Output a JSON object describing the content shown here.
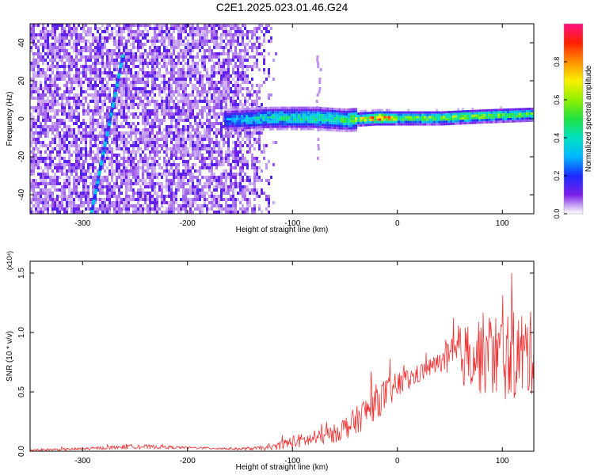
{
  "title": "C2E1.2025.023.01.46.G24",
  "chart_data": [
    {
      "type": "heatmap",
      "xlabel": "Height of straight line (km)",
      "ylabel": "Frequency (Hz)",
      "xlim": [
        -350,
        130
      ],
      "ylim": [
        -50,
        50
      ],
      "x_ticks": [
        -300,
        -200,
        -100,
        0,
        100
      ],
      "y_ticks": [
        -40,
        -20,
        0,
        20,
        40
      ],
      "x_tick_labels": [
        "-300",
        "-200",
        "-100",
        "0",
        "100"
      ],
      "y_tick_labels": [
        "-40",
        "-20",
        "0",
        "20",
        "40"
      ],
      "colorbar": {
        "label": "Normalized spectral amplitude",
        "range": [
          0,
          1
        ],
        "ticks": [
          "0.0",
          "0.2",
          "0.4",
          "0.6",
          "0.8"
        ],
        "ticks_values": [
          0.0,
          0.2,
          0.4,
          0.6,
          0.8
        ]
      },
      "noise_region_x": [
        -350,
        -115
      ],
      "streak": {
        "x_start": -292,
        "y_start": -50,
        "x_end": -262,
        "y_end": 33
      },
      "signal_track": [
        {
          "x": -160,
          "y": 0
        },
        {
          "x": -120,
          "y": 1
        },
        {
          "x": -80,
          "y": 1
        },
        {
          "x": -50,
          "y": 0
        },
        {
          "x": -20,
          "y": 1
        },
        {
          "x": 0,
          "y": 1
        },
        {
          "x": 40,
          "y": 1
        },
        {
          "x": 80,
          "y": 2
        },
        {
          "x": 130,
          "y": 3
        }
      ],
      "signal_amplitude": [
        {
          "x": -160,
          "a": 0.3
        },
        {
          "x": -120,
          "a": 0.42
        },
        {
          "x": -80,
          "a": 0.45
        },
        {
          "x": -50,
          "a": 0.48
        },
        {
          "x": -30,
          "a": 0.7
        },
        {
          "x": -15,
          "a": 0.95
        },
        {
          "x": 0,
          "a": 0.55
        },
        {
          "x": 50,
          "a": 0.6
        },
        {
          "x": 100,
          "a": 0.55
        },
        {
          "x": 130,
          "a": 0.5
        }
      ]
    },
    {
      "type": "line",
      "xlabel": "Height of straight line (km)",
      "ylabel": "SNR (10 * v/v)",
      "y_multiplier": "(x10⁴)",
      "xlim": [
        -350,
        130
      ],
      "ylim": [
        0,
        1.6
      ],
      "x_ticks": [
        -300,
        -200,
        -100,
        0,
        100
      ],
      "y_ticks": [
        0,
        0.5,
        1.0,
        1.5
      ],
      "x_tick_labels": [
        "-300",
        "-200",
        "-100",
        "0",
        "100"
      ],
      "y_tick_labels": [
        "0.0",
        "0.5",
        "1.0",
        "1.5"
      ],
      "series": [
        {
          "color": "#ee3333",
          "envelope": [
            {
              "x": -350,
              "mean": 0.01,
              "spread": 0.01
            },
            {
              "x": -300,
              "mean": 0.02,
              "spread": 0.01
            },
            {
              "x": -250,
              "mean": 0.04,
              "spread": 0.02
            },
            {
              "x": -200,
              "mean": 0.03,
              "spread": 0.01
            },
            {
              "x": -150,
              "mean": 0.02,
              "spread": 0.01
            },
            {
              "x": -120,
              "mean": 0.03,
              "spread": 0.02
            },
            {
              "x": -100,
              "mean": 0.08,
              "spread": 0.06
            },
            {
              "x": -80,
              "mean": 0.1,
              "spread": 0.06
            },
            {
              "x": -60,
              "mean": 0.15,
              "spread": 0.08
            },
            {
              "x": -40,
              "mean": 0.25,
              "spread": 0.12
            },
            {
              "x": -20,
              "mean": 0.42,
              "spread": 0.15
            },
            {
              "x": 0,
              "mean": 0.55,
              "spread": 0.12
            },
            {
              "x": 20,
              "mean": 0.65,
              "spread": 0.08
            },
            {
              "x": 40,
              "mean": 0.75,
              "spread": 0.08
            },
            {
              "x": 60,
              "mean": 0.8,
              "spread": 0.25
            },
            {
              "x": 80,
              "mean": 0.82,
              "spread": 0.35
            },
            {
              "x": 100,
              "mean": 0.8,
              "spread": 0.38
            },
            {
              "x": 120,
              "mean": 0.82,
              "spread": 0.38
            },
            {
              "x": 130,
              "mean": 0.82,
              "spread": 0.35
            }
          ]
        }
      ]
    }
  ]
}
